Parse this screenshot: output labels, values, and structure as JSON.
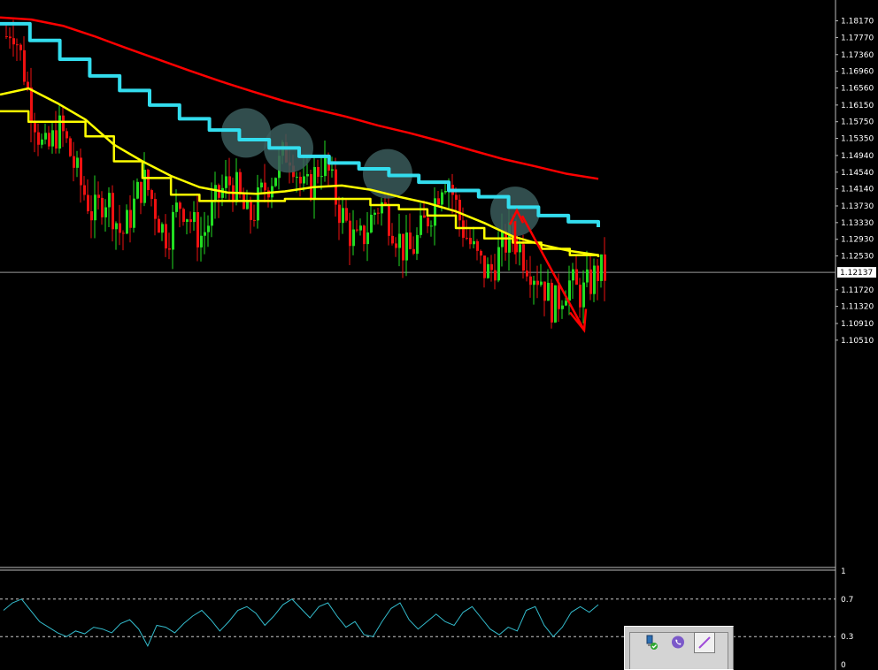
{
  "chart_data": [
    {
      "type": "line",
      "subtype": "candlestick",
      "instrument_note": "",
      "ylim": [
        1.051,
        1.185
      ],
      "price_ticks": [
        "1.18170",
        "1.17770",
        "1.17360",
        "1.16960",
        "1.16560",
        "1.16150",
        "1.15750",
        "1.15350",
        "1.14940",
        "1.14540",
        "1.14140",
        "1.13730",
        "1.13330",
        "1.12930",
        "1.12530",
        "1.12137",
        "1.11720",
        "1.11320",
        "1.10910",
        "1.10510"
      ],
      "price_tick_values": [
        1.1817,
        1.1777,
        1.1736,
        1.1696,
        1.1656,
        1.1615,
        1.1575,
        1.1535,
        1.1494,
        1.1454,
        1.1414,
        1.1373,
        1.1333,
        1.1293,
        1.1253,
        1.12137,
        1.1172,
        1.1132,
        1.1091,
        1.1051
      ],
      "current_price": "1.12137",
      "current_price_value": 1.12137,
      "bar_count": 170,
      "close_path": [
        1.178,
        1.181,
        1.176,
        1.17,
        1.163,
        1.158,
        1.152,
        1.15,
        1.153,
        1.156,
        1.154,
        1.15,
        1.146,
        1.142,
        1.139,
        1.135,
        1.137,
        1.14,
        1.138,
        1.134,
        1.13,
        1.133,
        1.137,
        1.141,
        1.143,
        1.14,
        1.136,
        1.132,
        1.13,
        1.134,
        1.138,
        1.137,
        1.134,
        1.131,
        1.13,
        1.133,
        1.137,
        1.14,
        1.142,
        1.143,
        1.141,
        1.137,
        1.134,
        1.136,
        1.139,
        1.142,
        1.144,
        1.146,
        1.149,
        1.151,
        1.148,
        1.143,
        1.14,
        1.143,
        1.146,
        1.148,
        1.145,
        1.14,
        1.136,
        1.133,
        1.13,
        1.128,
        1.13,
        1.133,
        1.136,
        1.138,
        1.136,
        1.133,
        1.13,
        1.127,
        1.126,
        1.128,
        1.131,
        1.134,
        1.137,
        1.141,
        1.145,
        1.143,
        1.138,
        1.133,
        1.13,
        1.127,
        1.124,
        1.122,
        1.121,
        1.124,
        1.127,
        1.129,
        1.131,
        1.128,
        1.125,
        1.123,
        1.121,
        1.12,
        1.116,
        1.113,
        1.115,
        1.118,
        1.119,
        1.117,
        1.116,
        1.118,
        1.12,
        1.122,
        1.121
      ],
      "series": [
        {
          "color": "#ff0000",
          "values": [
            1.1825,
            1.182,
            1.1805,
            1.178,
            1.1752,
            1.1725,
            1.1698,
            1.1672,
            1.1648,
            1.1625,
            1.1605,
            1.1587,
            1.1566,
            1.1548,
            1.1528,
            1.1506,
            1.1485,
            1.1468,
            1.145,
            1.1438
          ]
        },
        {
          "color": "#33ddee",
          "step": true,
          "values": [
            1.181,
            1.177,
            1.1725,
            1.1685,
            1.165,
            1.1615,
            1.1582,
            1.1555,
            1.1532,
            1.1512,
            1.1492,
            1.1476,
            1.1462,
            1.1446,
            1.143,
            1.141,
            1.1395,
            1.137,
            1.135,
            1.1335,
            1.1322
          ]
        },
        {
          "color": "#ffff00",
          "values": [
            1.164,
            1.1655,
            1.162,
            1.158,
            1.152,
            1.148,
            1.1445,
            1.1418,
            1.1405,
            1.1402,
            1.1408,
            1.1418,
            1.1422,
            1.1412,
            1.1395,
            1.138,
            1.136,
            1.1332,
            1.13,
            1.128,
            1.1265,
            1.1255
          ]
        },
        {
          "color": "#ffff00",
          "step": true,
          "values": [
            1.16,
            1.1575,
            1.1575,
            1.154,
            1.148,
            1.144,
            1.14,
            1.1385,
            1.1385,
            1.1385,
            1.139,
            1.139,
            1.139,
            1.1375,
            1.1365,
            1.135,
            1.132,
            1.1295,
            1.1285,
            1.127,
            1.1255,
            1.125
          ]
        }
      ],
      "highlight_circles": [
        {
          "bar": 68,
          "price": 1.1548
        },
        {
          "bar": 80,
          "price": 1.1512
        },
        {
          "bar": 108,
          "price": 1.145
        },
        {
          "bar": 144,
          "price": 1.136
        }
      ],
      "projection_arrow": {
        "from_bar": 144,
        "from_price": 1.1257,
        "peak_bar": 145,
        "peak_price": 1.1362,
        "to_bar": 163,
        "to_price": 1.1075,
        "color": "#ff0000"
      }
    },
    {
      "type": "line",
      "subtype": "oscillator",
      "ylim": [
        0,
        1
      ],
      "ticks": [
        "1",
        "0.7",
        "0.3",
        "0"
      ],
      "tick_values": [
        1,
        0.7,
        0.3,
        0
      ],
      "levels": [
        0.7,
        0.3
      ],
      "color": "#33bbcc",
      "values": [
        0.58,
        0.66,
        0.7,
        0.58,
        0.46,
        0.4,
        0.34,
        0.3,
        0.36,
        0.33,
        0.4,
        0.38,
        0.34,
        0.44,
        0.48,
        0.38,
        0.2,
        0.42,
        0.4,
        0.34,
        0.44,
        0.52,
        0.58,
        0.48,
        0.36,
        0.46,
        0.58,
        0.62,
        0.55,
        0.42,
        0.52,
        0.64,
        0.7,
        0.6,
        0.5,
        0.62,
        0.66,
        0.52,
        0.4,
        0.46,
        0.32,
        0.3,
        0.46,
        0.6,
        0.66,
        0.48,
        0.38,
        0.46,
        0.54,
        0.46,
        0.42,
        0.56,
        0.62,
        0.5,
        0.38,
        0.32,
        0.4,
        0.36,
        0.58,
        0.62,
        0.42,
        0.3,
        0.4,
        0.56,
        0.62,
        0.56,
        0.64
      ]
    }
  ],
  "toolbar": {
    "buttons": [
      {
        "name": "plugin-ok-icon",
        "active": false
      },
      {
        "name": "viber-icon",
        "active": false
      },
      {
        "name": "pen-icon",
        "active": true
      }
    ]
  }
}
